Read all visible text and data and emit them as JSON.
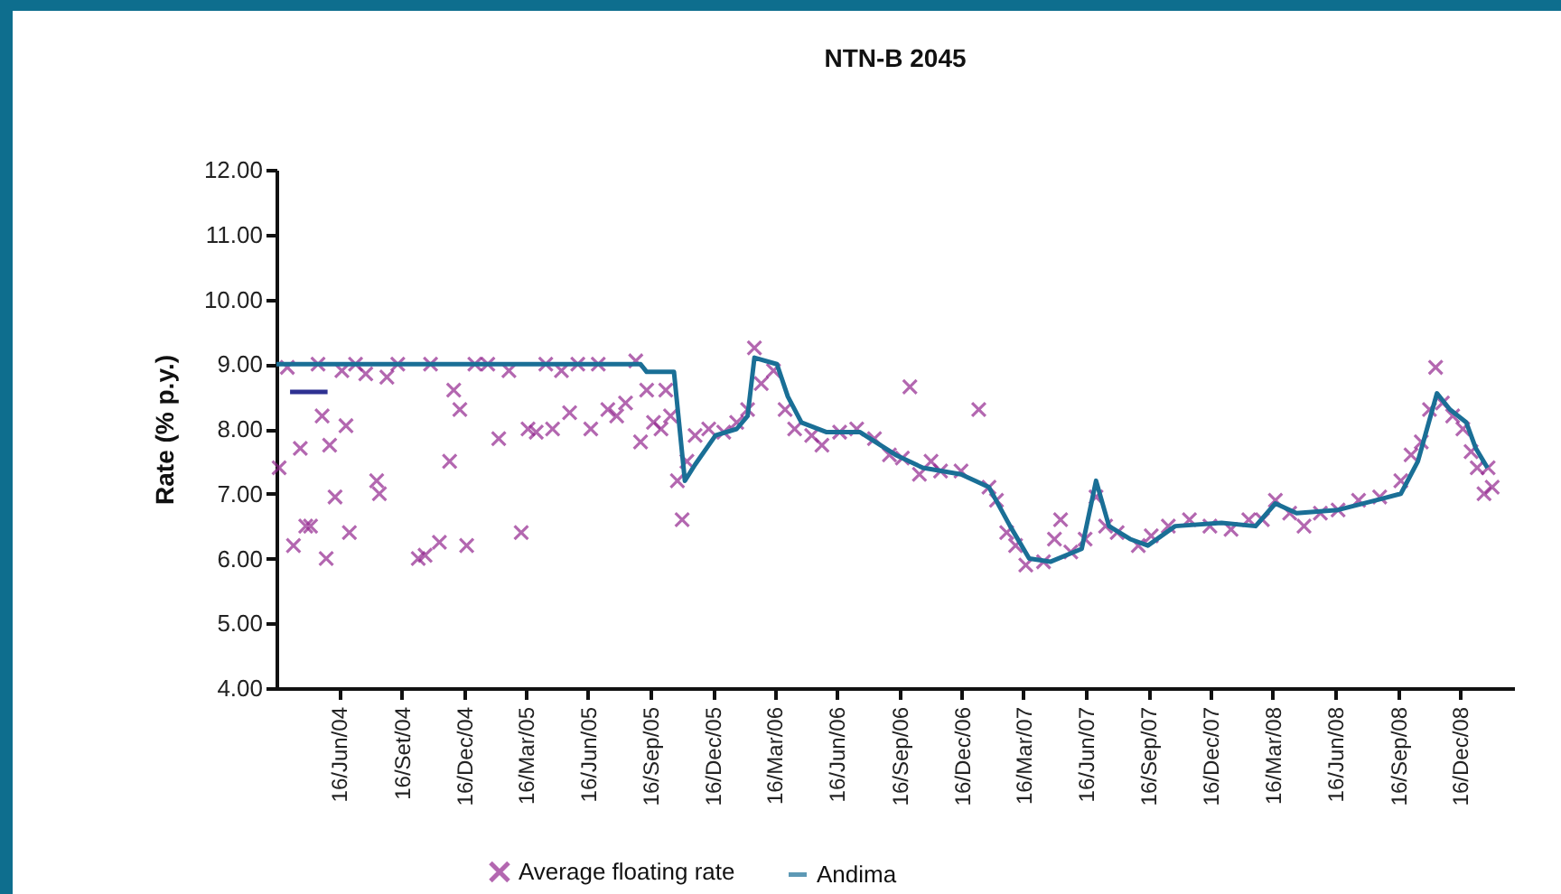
{
  "chart_data": {
    "type": "line",
    "title": "NTN-B 2045",
    "ylabel": "Rate (% p.y.)",
    "xlim": [
      "2004-03-16",
      "2009-03-05"
    ],
    "xticks": [
      {
        "value": "2004-06-16",
        "label": "16/Jun/04"
      },
      {
        "value": "2004-09-16",
        "label": "16/Set/04"
      },
      {
        "value": "2004-12-16",
        "label": "16/Dec/04"
      },
      {
        "value": "2005-03-16",
        "label": "16/Mar/05"
      },
      {
        "value": "2005-06-16",
        "label": "16/Jun/05"
      },
      {
        "value": "2005-09-16",
        "label": "16/Sep/05"
      },
      {
        "value": "2005-12-16",
        "label": "16/Dec/05"
      },
      {
        "value": "2006-03-16",
        "label": "16/Mar/06"
      },
      {
        "value": "2006-06-16",
        "label": "16/Jun/06"
      },
      {
        "value": "2006-09-16",
        "label": "16/Sep/06"
      },
      {
        "value": "2006-12-16",
        "label": "16/Dec/06"
      },
      {
        "value": "2007-03-16",
        "label": "16/Mar/07"
      },
      {
        "value": "2007-06-16",
        "label": "16/Jun/07"
      },
      {
        "value": "2007-09-16",
        "label": "16/Sep/07"
      },
      {
        "value": "2007-12-16",
        "label": "16/Dec/07"
      },
      {
        "value": "2008-03-16",
        "label": "16/Mar/08"
      },
      {
        "value": "2008-06-16",
        "label": "16/Jun/08"
      },
      {
        "value": "2008-09-16",
        "label": "16/Sep/08"
      },
      {
        "value": "2008-12-16",
        "label": "16/Dec/08"
      }
    ],
    "ylim": [
      4,
      12
    ],
    "yticks": [
      {
        "value": 4,
        "label": "4.00"
      },
      {
        "value": 5,
        "label": "5.00"
      },
      {
        "value": 6,
        "label": "6.00"
      },
      {
        "value": 7,
        "label": "7.00"
      },
      {
        "value": 8,
        "label": "8.00"
      },
      {
        "value": 9,
        "label": "9.00"
      },
      {
        "value": 10,
        "label": "10.00"
      },
      {
        "value": 11,
        "label": "11.00"
      },
      {
        "value": 12,
        "label": "12.00"
      }
    ],
    "grid": false,
    "legend": "bottom",
    "series": [
      {
        "name": "Average floating rate",
        "type": "scatter",
        "marker": "cross",
        "color": "#93278f",
        "x": [
          "2004-03-20",
          "2004-04-01",
          "2004-04-10",
          "2004-04-20",
          "2004-04-28",
          "2004-05-05",
          "2004-05-16",
          "2004-05-22",
          "2004-05-28",
          "2004-06-02",
          "2004-06-10",
          "2004-06-20",
          "2004-06-26",
          "2004-07-01",
          "2004-07-10",
          "2004-07-25",
          "2004-08-10",
          "2004-08-14",
          "2004-08-25",
          "2004-09-10",
          "2004-10-10",
          "2004-10-20",
          "2004-10-28",
          "2004-11-10",
          "2004-11-25",
          "2004-12-01",
          "2004-12-10",
          "2004-12-20",
          "2005-01-01",
          "2005-01-20",
          "2005-02-05",
          "2005-02-20",
          "2005-03-10",
          "2005-03-20",
          "2005-04-01",
          "2005-04-15",
          "2005-04-25",
          "2005-05-08",
          "2005-05-20",
          "2005-06-01",
          "2005-06-20",
          "2005-07-01",
          "2005-07-15",
          "2005-07-28",
          "2005-08-10",
          "2005-08-25",
          "2005-09-01",
          "2005-09-10",
          "2005-09-20",
          "2005-10-01",
          "2005-10-08",
          "2005-10-15",
          "2005-10-25",
          "2005-11-01",
          "2005-11-08",
          "2005-11-20",
          "2005-12-10",
          "2006-01-01",
          "2006-01-20",
          "2006-02-05",
          "2006-02-15",
          "2006-02-25",
          "2006-03-15",
          "2006-04-01",
          "2006-04-15",
          "2006-05-10",
          "2006-05-25",
          "2006-06-20",
          "2006-07-15",
          "2006-08-10",
          "2006-09-01",
          "2006-09-20",
          "2006-10-01",
          "2006-10-15",
          "2006-11-01",
          "2006-11-15",
          "2006-12-15",
          "2007-01-10",
          "2007-01-25",
          "2007-02-05",
          "2007-02-20",
          "2007-03-05",
          "2007-03-20",
          "2007-04-15",
          "2007-05-01",
          "2007-05-10",
          "2007-05-25",
          "2007-06-15",
          "2007-07-01",
          "2007-07-15",
          "2007-08-01",
          "2007-09-01",
          "2007-09-20",
          "2007-10-15",
          "2007-11-15",
          "2007-12-15",
          "2008-01-15",
          "2008-02-10",
          "2008-03-01",
          "2008-03-20",
          "2008-04-10",
          "2008-05-01",
          "2008-05-25",
          "2008-06-20",
          "2008-07-20",
          "2008-08-20",
          "2008-09-20",
          "2008-10-05",
          "2008-10-20",
          "2008-11-01",
          "2008-11-10",
          "2008-11-20",
          "2008-12-05",
          "2008-12-20",
          "2009-01-01",
          "2009-01-10",
          "2009-01-20",
          "2009-01-26",
          "2009-02-01"
        ],
        "values": [
          7.4,
          8.95,
          6.2,
          7.7,
          6.5,
          6.5,
          9.0,
          8.2,
          6.0,
          7.75,
          6.95,
          8.9,
          8.05,
          6.4,
          9.0,
          8.85,
          7.2,
          7.0,
          8.8,
          9.0,
          6.0,
          6.05,
          9.0,
          6.25,
          7.5,
          8.6,
          8.3,
          6.2,
          9.0,
          9.0,
          7.85,
          8.9,
          6.4,
          8.0,
          7.95,
          9.0,
          8.0,
          8.9,
          8.25,
          9.0,
          8.0,
          9.0,
          8.3,
          8.2,
          8.4,
          9.05,
          7.8,
          8.6,
          8.1,
          8.0,
          8.6,
          8.2,
          7.2,
          6.6,
          7.5,
          7.9,
          8.0,
          7.95,
          8.1,
          8.3,
          9.25,
          8.7,
          8.9,
          8.3,
          8.0,
          7.9,
          7.75,
          7.95,
          8.0,
          7.85,
          7.6,
          7.55,
          8.65,
          7.3,
          7.5,
          7.35,
          7.35,
          8.3,
          7.1,
          6.9,
          6.4,
          6.2,
          5.9,
          5.95,
          6.3,
          6.6,
          6.1,
          6.3,
          6.95,
          6.5,
          6.4,
          6.2,
          6.35,
          6.5,
          6.6,
          6.5,
          6.45,
          6.6,
          6.6,
          6.9,
          6.7,
          6.5,
          6.7,
          6.75,
          6.9,
          6.95,
          7.2,
          7.6,
          7.8,
          8.3,
          8.95,
          8.4,
          8.2,
          8.0,
          7.65,
          7.4,
          7.0,
          7.4,
          7.1
        ]
      },
      {
        "name": "Andima",
        "line_style": "solid",
        "color": "#1a6f96",
        "x": [
          "2004-03-16",
          "2005-09-01",
          "2005-09-10",
          "2005-10-20",
          "2005-11-05",
          "2005-11-20",
          "2005-12-20",
          "2006-01-20",
          "2006-02-05",
          "2006-02-15",
          "2006-03-20",
          "2006-04-05",
          "2006-04-25",
          "2006-06-01",
          "2006-07-20",
          "2006-09-10",
          "2006-10-20",
          "2006-12-15",
          "2007-01-25",
          "2007-02-25",
          "2007-03-25",
          "2007-04-25",
          "2007-06-10",
          "2007-07-01",
          "2007-07-20",
          "2007-08-20",
          "2007-09-15",
          "2007-10-25",
          "2008-01-01",
          "2008-02-20",
          "2008-03-20",
          "2008-04-20",
          "2008-06-20",
          "2008-08-15",
          "2008-09-20",
          "2008-10-15",
          "2008-11-12",
          "2008-12-01",
          "2008-12-25",
          "2009-01-08",
          "2009-01-25"
        ],
        "values": [
          9.0,
          9.0,
          8.88,
          8.88,
          7.2,
          7.45,
          7.9,
          8.0,
          8.2,
          9.1,
          9.0,
          8.5,
          8.1,
          7.95,
          7.95,
          7.6,
          7.4,
          7.3,
          7.1,
          6.5,
          6.0,
          5.95,
          6.15,
          7.2,
          6.5,
          6.3,
          6.2,
          6.5,
          6.55,
          6.5,
          6.85,
          6.7,
          6.75,
          6.9,
          7.0,
          7.5,
          8.55,
          8.3,
          8.1,
          7.7,
          7.4
        ]
      },
      {
        "line_style": "solid",
        "color": "#2e3192",
        "x": [
          "2004-04-05",
          "2004-05-30"
        ],
        "values": [
          8.57,
          8.57
        ]
      }
    ]
  }
}
